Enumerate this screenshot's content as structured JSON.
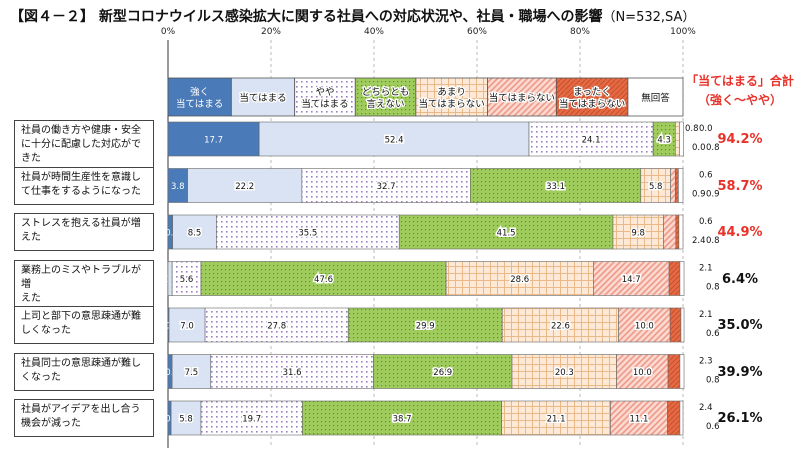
{
  "title": {
    "main": "【図４－２】 新型コロナウイルス感染拡大に関する社員への対応状況や、社員・職場への影響",
    "note": "（N=532,SA）"
  },
  "total_header": [
    "「当てはまる」合計",
    "（強く～やや）"
  ],
  "colors": {
    "strong": "#4a7ab7",
    "apply": "#d9e3f3",
    "slight": "#9b7fc0",
    "neutral": "#8fc24d",
    "notmuch": "#e9b98a",
    "notapply": "#ef9a88",
    "notatall": "#e0663f",
    "noanswer": "#ffffff",
    "total_red": "#e8322a"
  },
  "chart_data": {
    "type": "bar",
    "orientation": "horizontal-stacked-100",
    "xlim": [
      0,
      100
    ],
    "xticks": [
      "0%",
      "20%",
      "40%",
      "60%",
      "80%",
      "100%"
    ],
    "legend_position": "top",
    "series_labels": [
      [
        "強く",
        "当てはまる"
      ],
      [
        "当てはまる"
      ],
      [
        "やや",
        "当てはまる"
      ],
      [
        "どちらとも",
        "言えない"
      ],
      [
        "あまり",
        "当てはまらない"
      ],
      [
        "当てはまらない"
      ],
      [
        "まったく",
        "当てはまらない"
      ],
      [
        "無回答"
      ]
    ],
    "series_keys": [
      "strong",
      "apply",
      "slight",
      "neutral",
      "notmuch",
      "notapply",
      "notatall",
      "noanswer"
    ],
    "categories": [
      [
        "社員の働き方や健康・安全",
        "に十分に配慮した対応がで",
        "きた"
      ],
      [
        "社員が時間生産性を意識し",
        "て仕事をするようになった"
      ],
      [
        "ストレスを抱える社員が増",
        "えた"
      ],
      [
        "業務上のミスやトラブルが増",
        "えた"
      ],
      [
        "上司と部下の意思疎通が難",
        "しくなった"
      ],
      [
        "社員同士の意思疎通が難し",
        "くなった"
      ],
      [
        "社員がアイデアを出し合う",
        "機会が減った"
      ]
    ],
    "values": [
      [
        17.7,
        52.4,
        24.1,
        4.3,
        0.8,
        0.0,
        0.0,
        0.8
      ],
      [
        3.8,
        22.2,
        32.7,
        33.1,
        5.8,
        0.9,
        0.6,
        0.9
      ],
      [
        0.9,
        8.5,
        35.5,
        41.5,
        9.8,
        2.4,
        0.6,
        0.8
      ],
      [
        0.0,
        0.8,
        5.6,
        47.6,
        28.6,
        14.7,
        2.1,
        0.8
      ],
      [
        0.2,
        7.0,
        27.8,
        29.9,
        22.6,
        10.0,
        2.1,
        0.6
      ],
      [
        0.8,
        7.5,
        31.6,
        26.9,
        20.3,
        10.0,
        2.3,
        0.8
      ],
      [
        0.6,
        5.8,
        19.7,
        38.7,
        21.1,
        11.1,
        2.4,
        0.6
      ]
    ],
    "totals": [
      "94.2%",
      "58.7%",
      "44.9%",
      "6.4%",
      "35.0%",
      "39.9%",
      "26.1%"
    ],
    "totals_highlight": [
      true,
      true,
      true,
      false,
      false,
      false,
      false
    ]
  }
}
